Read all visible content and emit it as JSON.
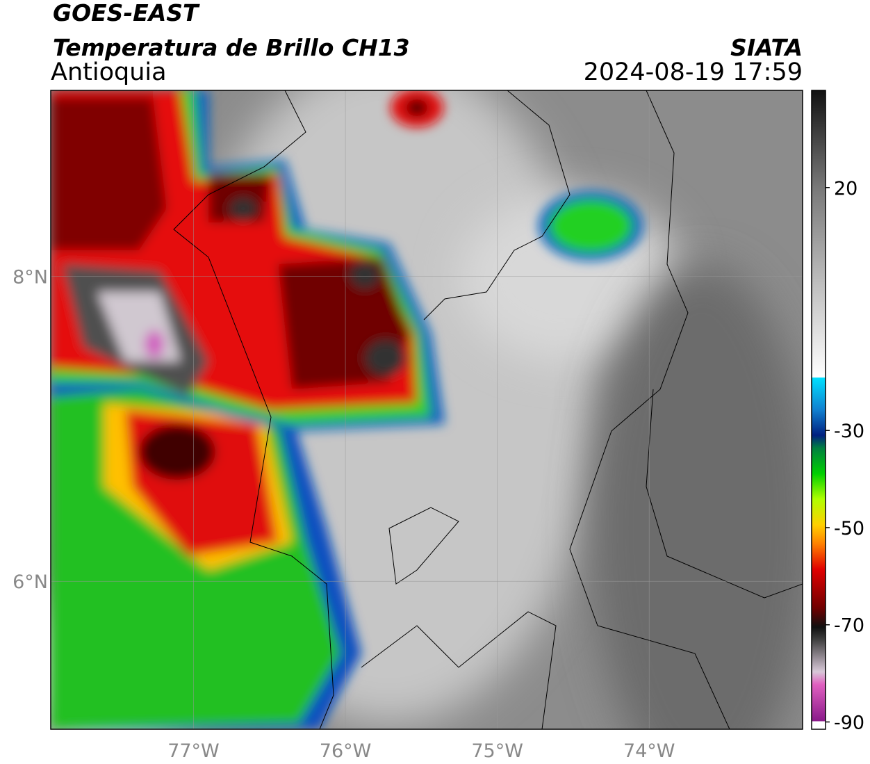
{
  "header": {
    "title": "GOES-EAST",
    "subtitle": "Temperatura de Brillo CH13",
    "region": "Antioquia",
    "source": "SIATA",
    "datetime": "2024-08-19 17:59"
  },
  "map": {
    "xlim": [
      -77.94,
      -72.99
    ],
    "ylim": [
      5.03,
      9.22
    ],
    "xticks": [
      {
        "value": -77,
        "label": "77°W"
      },
      {
        "value": -76,
        "label": "76°W"
      },
      {
        "value": -75,
        "label": "75°W"
      },
      {
        "value": -74,
        "label": "74°W"
      }
    ],
    "yticks": [
      {
        "value": 6,
        "label": "6°N"
      },
      {
        "value": 8,
        "label": "8°N"
      }
    ],
    "grid": true
  },
  "colorbar": {
    "lim": [
      -91.5,
      40
    ],
    "ticks": [
      -90,
      -70,
      -50,
      -30,
      20
    ]
  }
}
